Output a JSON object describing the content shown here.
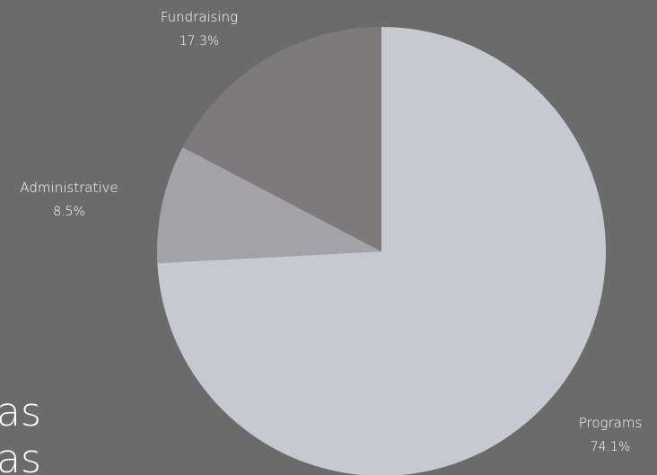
{
  "background": {
    "color": "#6b6b6b",
    "fragment_lines": [
      "as",
      "as"
    ]
  },
  "chart_data": {
    "type": "pie",
    "title": "",
    "legend": "none",
    "slices": [
      {
        "name": "Programs",
        "value": 74.1,
        "label": "74.1%",
        "color": "#c6c9d1"
      },
      {
        "name": "Administrative",
        "value": 8.5,
        "label": "8.5%",
        "color": "#a3a2a9"
      },
      {
        "name": "Fundraising",
        "value": 17.3,
        "label": "17.3%",
        "color": "#7e797d"
      }
    ]
  }
}
